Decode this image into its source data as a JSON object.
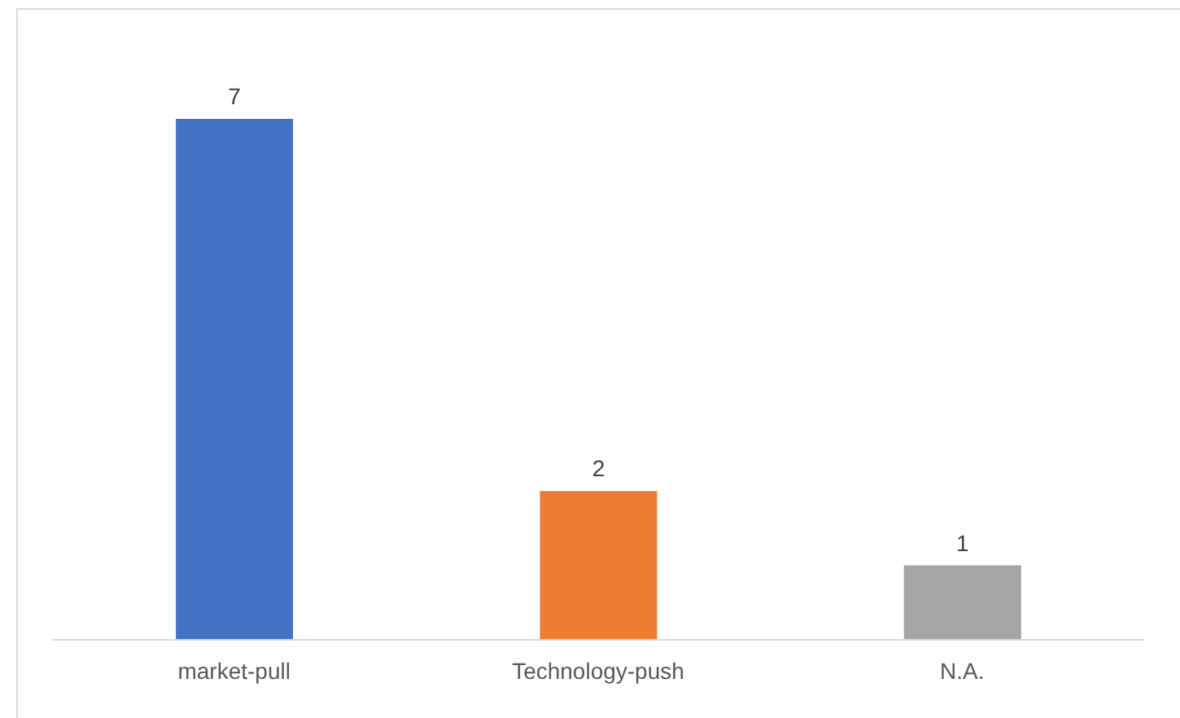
{
  "chart_data": {
    "type": "bar",
    "categories": [
      "market-pull",
      "Technology-push",
      "N.A."
    ],
    "values": [
      7,
      2,
      1
    ],
    "colors": [
      "#4472c4",
      "#ed7d31",
      "#a5a5a5"
    ],
    "data_labels": true,
    "grid": false,
    "legend": false
  }
}
